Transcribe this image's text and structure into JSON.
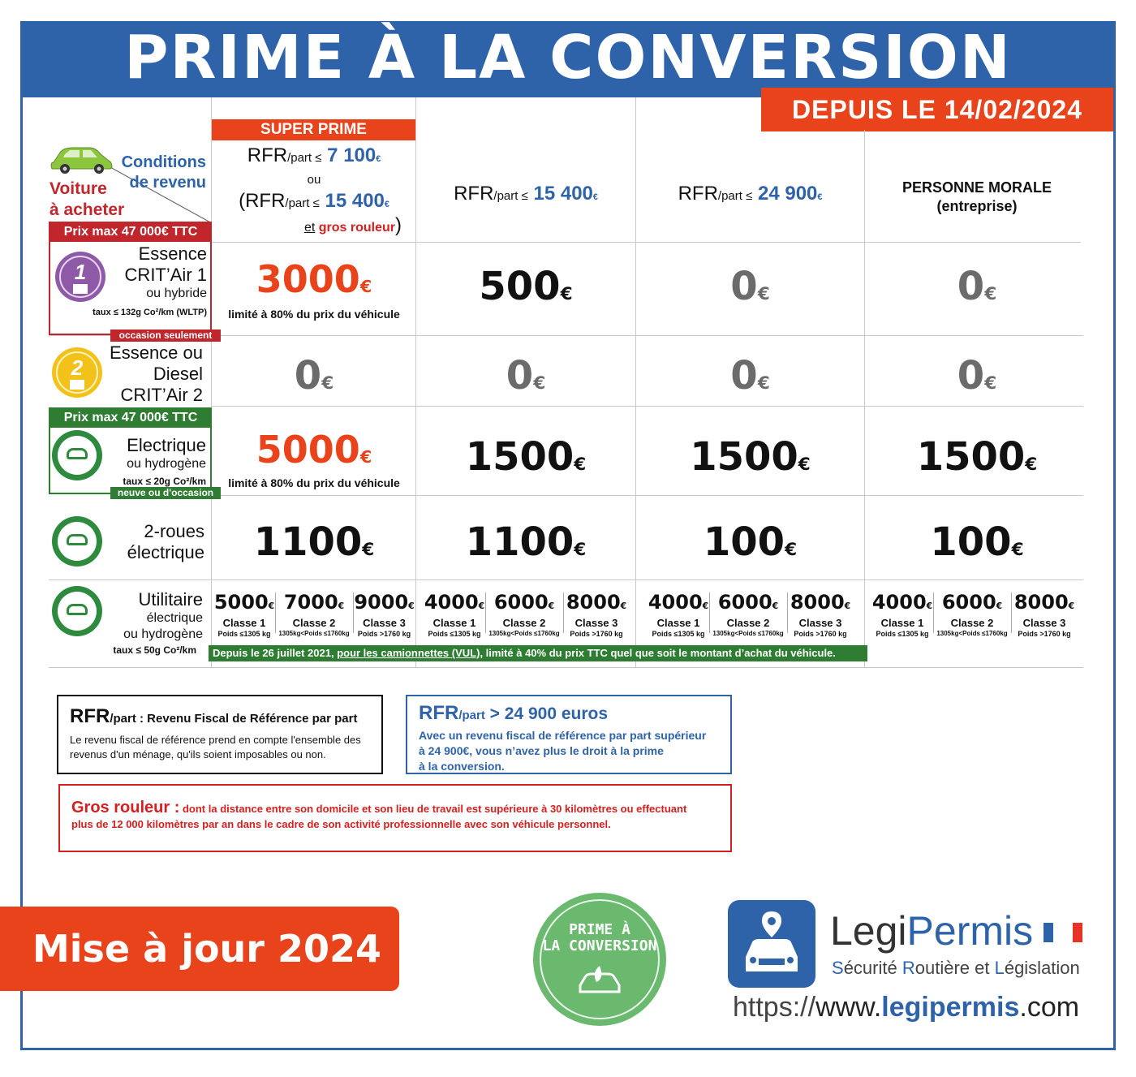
{
  "header": {
    "title": "PRIME À LA CONVERSION",
    "date_badge": "DEPUIS LE 14/02/2024"
  },
  "legend": {
    "conditions_line1": "Conditions",
    "conditions_line2": "de revenu",
    "vehicle_line1": "Voiture",
    "vehicle_line2": "à acheter"
  },
  "columns": {
    "super_prime": "SUPER PRIME",
    "col1": {
      "rfr": "RFR",
      "part": "/part ≤",
      "amount": "7 100",
      "euro": "€",
      "ou": "ou",
      "open": "(RFR",
      "amount2": "15 400",
      "et": "et",
      "gros": "gros rouleur",
      "close": ")"
    },
    "col2": {
      "rfr": "RFR",
      "part": "/part ≤",
      "amount": "15 400",
      "euro": "€"
    },
    "col3": {
      "rfr": "RFR",
      "part": "/part ≤",
      "amount": "24 900",
      "euro": "€"
    },
    "col4": {
      "line1": "PERSONNE MORALE",
      "line2": "(entreprise)"
    }
  },
  "rows": {
    "crit1": {
      "prix_max": "Prix max 47 000€ TTC",
      "line1": "Essence",
      "line2": "CRIT’Air 1",
      "line3": "ou hybride",
      "line4": "taux ≤ 132g Co²/km (WLTP)",
      "occasion": "occasion seulement",
      "badge_num": "1",
      "values": [
        "3000",
        "500",
        "0",
        "0"
      ],
      "limit_note": "limité à 80% du prix du véhicule"
    },
    "crit2": {
      "line1": "Essence ou",
      "line2": "Diesel",
      "line3": "CRIT’Air 2",
      "badge_num": "2",
      "values": [
        "0",
        "0",
        "0",
        "0"
      ]
    },
    "electric": {
      "prix_max": "Prix max 47 000€ TTC",
      "line1": "Electrique",
      "line2": "ou hydrogène",
      "line3": "taux ≤ 20g Co²/km",
      "neuve": "neuve ou d'occasion",
      "values": [
        "5000",
        "1500",
        "1500",
        "1500"
      ],
      "limit_note": "limité à 80% du prix du véhicule"
    },
    "two_wheels": {
      "line1": "2-roues",
      "line2": "électrique",
      "values": [
        "1100",
        "1100",
        "100",
        "100"
      ]
    },
    "utility": {
      "line1": "Utilitaire",
      "line2": "électrique",
      "line3": "ou hydrogène",
      "line4": "taux ≤ 50g Co²/km",
      "groups": [
        [
          [
            "5000",
            "Classe 1",
            "Poids ≤1305 kg"
          ],
          [
            "7000",
            "Classe 2",
            "1305kg<Poids ≤1760kg"
          ],
          [
            "9000",
            "Classe 3",
            "Poids >1760 kg"
          ]
        ],
        [
          [
            "4000",
            "Classe 1",
            "Poids ≤1305 kg"
          ],
          [
            "6000",
            "Classe 2",
            "1305kg<Poids ≤1760kg"
          ],
          [
            "8000",
            "Classe 3",
            "Poids >1760 kg"
          ]
        ],
        [
          [
            "4000",
            "Classe 1",
            "Poids ≤1305 kg"
          ],
          [
            "6000",
            "Classe 2",
            "1305kg<Poids ≤1760kg"
          ],
          [
            "8000",
            "Classe 3",
            "Poids >1760 kg"
          ]
        ],
        [
          [
            "4000",
            "Classe 1",
            "Poids ≤1305 kg"
          ],
          [
            "6000",
            "Classe 2",
            "1305kg<Poids ≤1760kg"
          ],
          [
            "8000",
            "Classe 3",
            "Poids >1760 kg"
          ]
        ]
      ],
      "footnote_a": "Depuis le 26 juillet 2021, ",
      "footnote_u": "pour les camionnettes (VUL)",
      "footnote_b": ", limité à 40% du prix TTC quel que soit le montant d’achat du véhicule."
    }
  },
  "euro_sign": "€",
  "info": {
    "rfr_title": "RFR",
    "rfr_part": "/part",
    "rfr_def": " : Revenu Fiscal de Référence par part",
    "rfr_text": "Le revenu fiscal de référence prend en compte l'ensemble des revenus d'un ménage, qu'ils soient imposables ou non.",
    "limit_title": "RFR",
    "limit_part": "/part",
    "limit_amount": " > 24 900 euros",
    "limit_text1": "Avec un revenu fiscal de référence par part supérieur",
    "limit_text2": "à 24 900€, vous n’avez plus le droit à la prime",
    "limit_text3": "à la conversion.",
    "gros_title": "Gros rouleur :",
    "gros_text1": "dont la distance entre son domicile et son lieu de travail est supérieure à 30 kilomètres ou effectuant",
    "gros_text2": "plus de 12 000 kilomètres par an dans le cadre de son activité professionnelle avec son véhicule personnel."
  },
  "footer": {
    "update": "Mise à jour 2024",
    "seal_line1": "PRIME À",
    "seal_line2": "LA CONVERSION",
    "brand_a": "Legi",
    "brand_b": "Permis",
    "tag_s": "S",
    "tag_1": "écurité ",
    "tag_r": "R",
    "tag_2": "outière et ",
    "tag_l": "L",
    "tag_3": "égislation",
    "url_a": "https://",
    "url_b": "www.",
    "url_c": "legipermis",
    "url_d": ".com"
  },
  "colors": {
    "brand_blue": "#2f63a9",
    "accent_orange": "#e8431b",
    "alert_red": "#d62020",
    "green": "#2e7d32"
  }
}
